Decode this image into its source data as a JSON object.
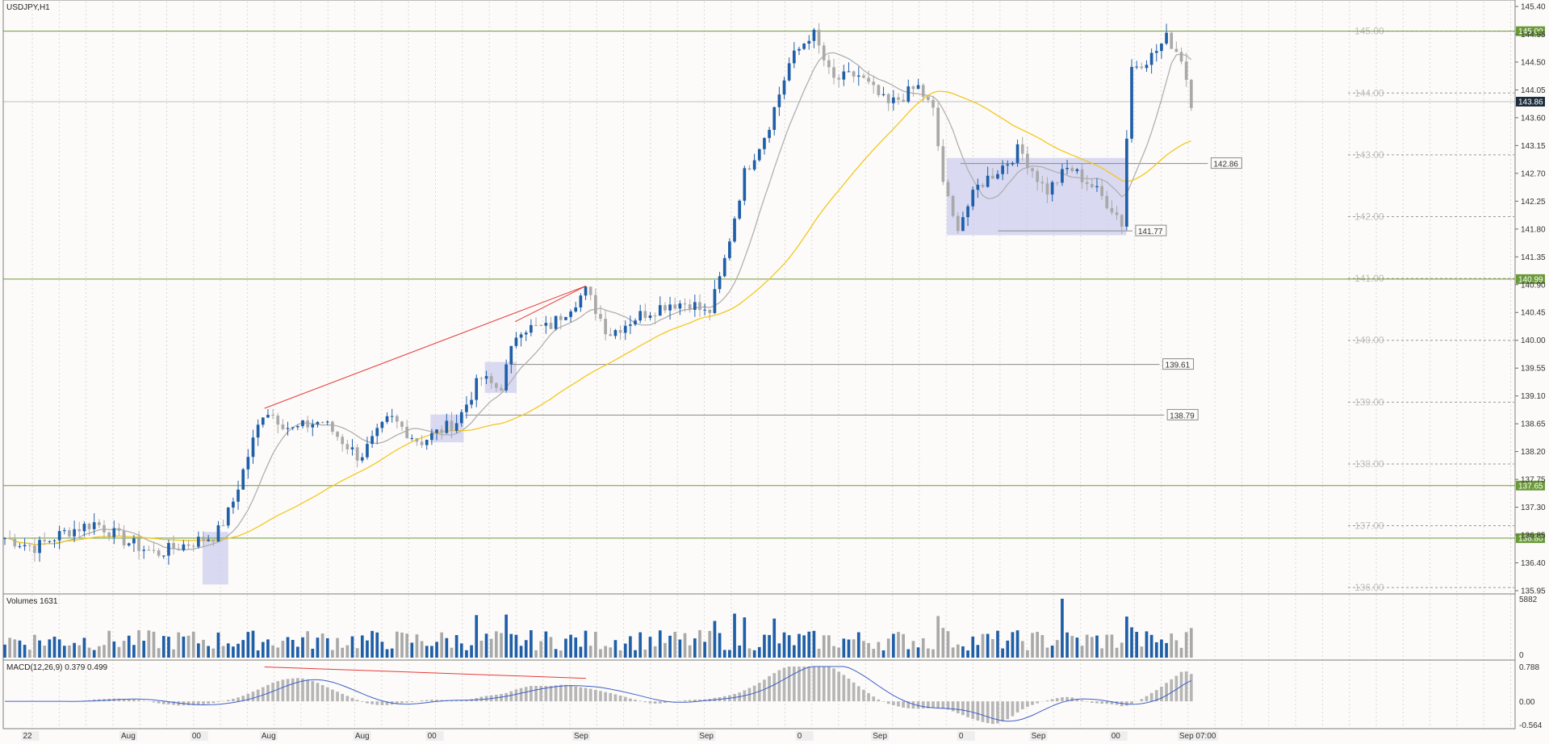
{
  "chart_data": {
    "type": "candlestick",
    "symbol_title": "USDJPY,H1",
    "price_scale": {
      "ylim": [
        135.95,
        145.4
      ],
      "ticks": [
        "145.40",
        "144.95",
        "144.50",
        "144.05",
        "143.60",
        "143.15",
        "142.70",
        "142.25",
        "141.80",
        "141.35",
        "140.90",
        "140.45",
        "140.00",
        "139.55",
        "139.10",
        "138.65",
        "138.20",
        "137.75",
        "137.30",
        "136.85",
        "136.40",
        "135.95"
      ],
      "current_price": "143.86",
      "current_value": 143.86
    },
    "horizontal_levels": [
      {
        "value": 145.0,
        "label": "145.00",
        "color": "#6b9a3a"
      },
      {
        "value": 140.99,
        "label": "140.99",
        "color": "#6b9a3a"
      },
      {
        "value": 137.65,
        "label": "137.65",
        "color": "#6b9a3a"
      },
      {
        "value": 136.8,
        "label": "136.80",
        "color": "#6b9a3a"
      }
    ],
    "round_levels": [
      "145.00",
      "144.00",
      "143.00",
      "142.00",
      "141.00",
      "140.00",
      "139.00",
      "138.00",
      "137.00",
      "136.00"
    ],
    "level_lines": [
      {
        "value": 142.86,
        "label": "142.86"
      },
      {
        "value": 141.77,
        "label": "141.77"
      },
      {
        "value": 139.61,
        "label": "139.61"
      },
      {
        "value": 138.79,
        "label": "138.79"
      }
    ],
    "trendlines": [
      {
        "from": [
          0.172,
          138.9
        ],
        "to": [
          0.385,
          140.88
        ]
      },
      {
        "from": [
          0.338,
          140.3
        ],
        "to": [
          0.385,
          140.88
        ]
      }
    ],
    "zones": [
      {
        "x": [
          0.624,
          0.743
        ],
        "y": [
          141.7,
          142.95
        ]
      },
      {
        "x": [
          0.131,
          0.148
        ],
        "y": [
          136.05,
          136.9
        ]
      },
      {
        "x": [
          0.318,
          0.339
        ],
        "y": [
          139.15,
          139.65
        ]
      },
      {
        "x": [
          0.282,
          0.304
        ],
        "y": [
          138.35,
          138.8
        ]
      }
    ],
    "keypoints": [
      [
        0.0,
        136.8
      ],
      [
        0.02,
        136.65
      ],
      [
        0.04,
        136.9
      ],
      [
        0.06,
        137.05
      ],
      [
        0.08,
        136.75
      ],
      [
        0.1,
        136.55
      ],
      [
        0.12,
        136.7
      ],
      [
        0.14,
        136.85
      ],
      [
        0.15,
        137.3
      ],
      [
        0.162,
        138.2
      ],
      [
        0.172,
        138.9
      ],
      [
        0.19,
        138.55
      ],
      [
        0.21,
        138.7
      ],
      [
        0.235,
        138.1
      ],
      [
        0.255,
        138.75
      ],
      [
        0.275,
        138.35
      ],
      [
        0.3,
        138.7
      ],
      [
        0.315,
        139.4
      ],
      [
        0.328,
        139.2
      ],
      [
        0.34,
        140.2
      ],
      [
        0.36,
        140.2
      ],
      [
        0.385,
        140.8
      ],
      [
        0.4,
        140.1
      ],
      [
        0.42,
        140.4
      ],
      [
        0.44,
        140.6
      ],
      [
        0.455,
        140.6
      ],
      [
        0.466,
        140.4
      ],
      [
        0.475,
        141.1
      ],
      [
        0.49,
        142.7
      ],
      [
        0.505,
        143.4
      ],
      [
        0.52,
        144.5
      ],
      [
        0.535,
        145.0
      ],
      [
        0.548,
        144.2
      ],
      [
        0.565,
        144.3
      ],
      [
        0.585,
        143.8
      ],
      [
        0.605,
        144.1
      ],
      [
        0.615,
        143.7
      ],
      [
        0.622,
        142.5
      ],
      [
        0.63,
        141.8
      ],
      [
        0.645,
        142.5
      ],
      [
        0.665,
        142.9
      ],
      [
        0.672,
        143.1
      ],
      [
        0.69,
        142.4
      ],
      [
        0.705,
        142.8
      ],
      [
        0.72,
        142.5
      ],
      [
        0.735,
        142.1
      ],
      [
        0.741,
        141.85
      ],
      [
        0.745,
        144.4
      ],
      [
        0.76,
        144.6
      ],
      [
        0.77,
        144.9
      ],
      [
        0.78,
        144.55
      ],
      [
        0.786,
        143.86
      ]
    ],
    "time_axis_labels": [
      "22",
      "Aug",
      "00",
      "Aug",
      "Aug",
      "00",
      "Sep",
      "Sep",
      "0",
      "Sep",
      "0",
      "Sep",
      "00",
      "Sep 07:00"
    ],
    "volumes": {
      "title": "Volumes 1631",
      "ylim": [
        0,
        5882
      ],
      "ticks": [
        "5882",
        "0"
      ]
    },
    "macd": {
      "title": "MACD(12,26,9) 0.379 0.499",
      "ylim": [
        -0.564,
        0.788
      ],
      "ticks": [
        "0.788",
        "0.00",
        "-0.564"
      ]
    },
    "colors": {
      "bull": "#1f5fa8",
      "bear": "#a9a9a9",
      "ma_fast": "#b0b0b0",
      "ma_slow": "#f2c81e",
      "level": "#6b9a3a",
      "trend": "#e33b3b",
      "zone": "#c9cbee",
      "macd_signal": "#3d5fc9",
      "grid": "#d9d9d9"
    }
  }
}
